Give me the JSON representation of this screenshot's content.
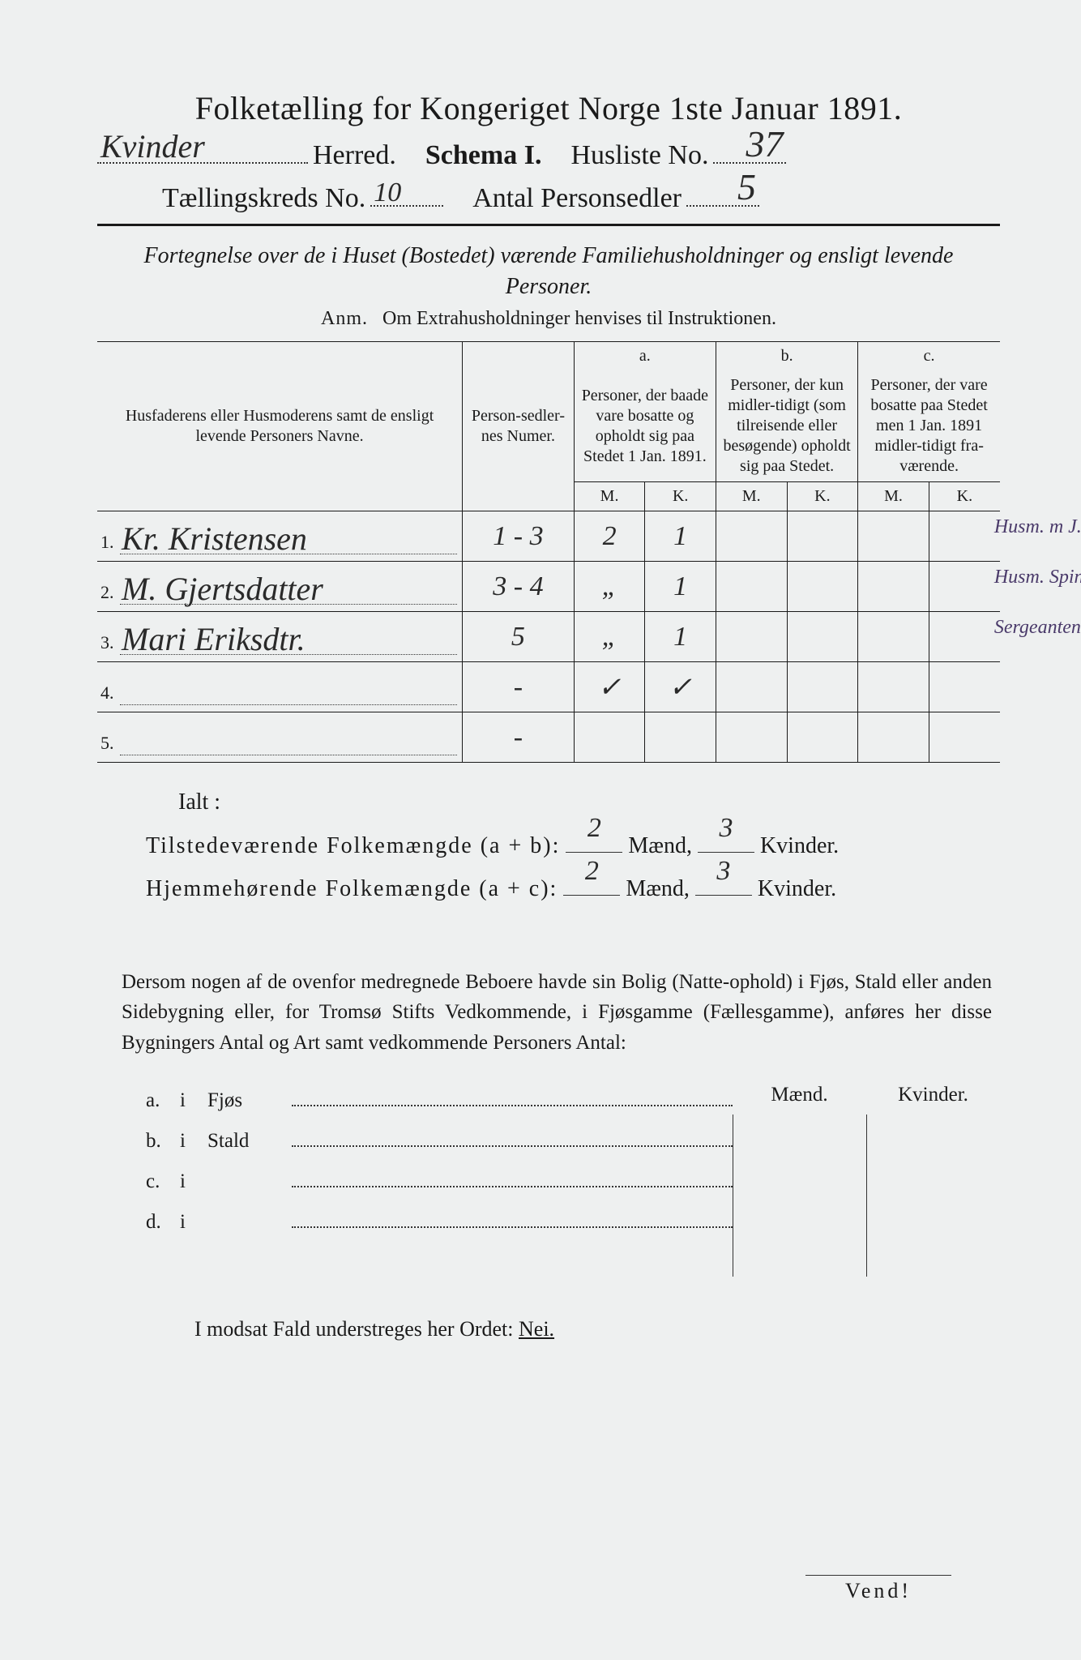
{
  "header": {
    "title": "Folketælling for Kongeriget Norge 1ste Januar 1891.",
    "herred_hand": "Kvinder",
    "herred_label": "Herred.",
    "schema_label": "Schema I.",
    "husliste_label": "Husliste No.",
    "husliste_no": "37",
    "kreds_label": "Tællingskreds No.",
    "kreds_no": "10",
    "antal_label": "Antal Personsedler",
    "antal_no": "5"
  },
  "subtitle": "Fortegnelse over de i Huset (Bostedet) værende Familiehusholdninger og ensligt levende Personer.",
  "anm": {
    "label": "Anm.",
    "text": "Om Extrahusholdninger henvises til Instruktionen."
  },
  "table": {
    "col_name": "Husfaderens eller Husmoderens samt de ensligt levende Personers Navne.",
    "col_num": "Person-sedler-nes Numer.",
    "col_a_top": "a.",
    "col_a": "Personer, der baade vare bosatte og opholdt sig paa Stedet 1 Jan. 1891.",
    "col_b_top": "b.",
    "col_b": "Personer, der kun midler-tidigt (som tilreisende eller besøgende) opholdt sig paa Stedet.",
    "col_c_top": "c.",
    "col_c": "Personer, der vare bosatte paa Stedet men 1 Jan. 1891 midler-tidigt fra-værende.",
    "mk_m": "M.",
    "mk_k": "K.",
    "rows": [
      {
        "idx": "1.",
        "name": "Kr. Kristensen",
        "num": "1 - 3",
        "a_m": "2",
        "a_k": "1",
        "b_m": "",
        "b_k": "",
        "c_m": "",
        "c_k": "",
        "note": "Husm. m J."
      },
      {
        "idx": "2.",
        "name": "M. Gjertsdatter",
        "num": "3 - 4",
        "a_m": "„",
        "a_k": "1",
        "b_m": "",
        "b_k": "",
        "c_m": "",
        "c_k": "",
        "note": "Husm. Spinding"
      },
      {
        "idx": "3.",
        "name": "Mari Eriksdtr.",
        "num": "5",
        "a_m": "„",
        "a_k": "1",
        "b_m": "",
        "b_k": "",
        "c_m": "",
        "c_k": "",
        "note": "Sergeantenke helt Fat"
      },
      {
        "idx": "4.",
        "name": "",
        "num": "-",
        "a_m": "✓",
        "a_k": "✓",
        "b_m": "",
        "b_k": "",
        "c_m": "",
        "c_k": "",
        "note": ""
      },
      {
        "idx": "5.",
        "name": "",
        "num": "-",
        "a_m": "",
        "a_k": "",
        "b_m": "",
        "b_k": "",
        "c_m": "",
        "c_k": "",
        "note": ""
      }
    ]
  },
  "totals": {
    "ialt": "Ialt :",
    "line1_label": "Tilstedeværende Folkemængde (a + b):",
    "line2_label": "Hjemmehørende Folkemængde (a + c):",
    "maend": "Mænd,",
    "kvinder": "Kvinder.",
    "l1_m": "2",
    "l1_k": "3",
    "l2_m": "2",
    "l2_k": "3"
  },
  "para": "Dersom nogen af de ovenfor medregnede Beboere havde sin Bolig (Natte-ophold) i Fjøs, Stald eller anden Sidebygning eller, for Tromsø Stifts Vedkommende, i Fjøsgamme (Fællesgamme), anføres her disse Bygningers Antal og Art samt vedkommende Personers Antal:",
  "bldg": {
    "hdr_m": "Mænd.",
    "hdr_k": "Kvinder.",
    "rows": [
      {
        "p": "a.",
        "i": "i",
        "t": "Fjøs"
      },
      {
        "p": "b.",
        "i": "i",
        "t": "Stald"
      },
      {
        "p": "c.",
        "i": "i",
        "t": ""
      },
      {
        "p": "d.",
        "i": "i",
        "t": ""
      }
    ]
  },
  "nei": {
    "pre": "I modsat Fald understreges her Ordet:",
    "word": "Nei."
  },
  "vend": "Vend!",
  "colors": {
    "paper": "#eef0f0",
    "ink": "#1a1a1a",
    "hand": "#2a2a2a",
    "note": "#4a3a6a",
    "bg": "#d8dce0"
  }
}
